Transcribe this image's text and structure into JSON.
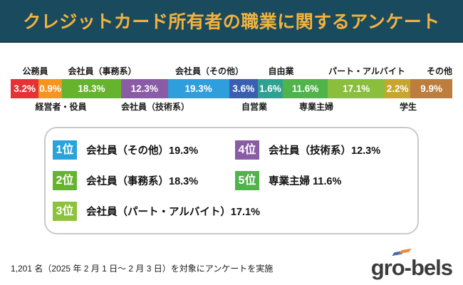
{
  "header": {
    "title": "クレジットカード所有者の職業に関するアンケート",
    "background_color": "#1a4a5e",
    "title_color": "#f2b33f"
  },
  "chart_data": {
    "type": "bar",
    "subtype": "stacked-horizontal-100pct",
    "title": "クレジットカード所有者の職業に関するアンケート",
    "unit": "%",
    "legend_position": "labels-alternating-above-below",
    "segments": [
      {
        "label": "公務員",
        "value": 3.2,
        "display": "3.2%",
        "color": "#e63232",
        "label_pos": "top"
      },
      {
        "label": "経営者・役員",
        "value": 0.9,
        "display": "0.9%",
        "color": "#f7941e",
        "label_pos": "bottom"
      },
      {
        "label": "会社員（事務系）",
        "value": 18.3,
        "display": "18.3%",
        "color": "#66b42e",
        "label_pos": "top"
      },
      {
        "label": "会社員（技術系）",
        "value": 12.3,
        "display": "12.3%",
        "color": "#8a5ca6",
        "label_pos": "bottom"
      },
      {
        "label": "会社員（その他）",
        "value": 19.3,
        "display": "19.3%",
        "color": "#2e9fdc",
        "label_pos": "top"
      },
      {
        "label": "自営業",
        "value": 3.6,
        "display": "3.6%",
        "color": "#3a5fb2",
        "label_pos": "bottom"
      },
      {
        "label": "自由業",
        "value": 1.6,
        "display": "1.6%",
        "color": "#2ea291",
        "label_pos": "top"
      },
      {
        "label": "専業主婦",
        "value": 11.6,
        "display": "11.6%",
        "color": "#50b44a",
        "label_pos": "bottom"
      },
      {
        "label": "パート・アルバイト",
        "value": 17.1,
        "display": "17.1%",
        "color": "#8abe3c",
        "label_pos": "top"
      },
      {
        "label": "学生",
        "value": 2.2,
        "display": "2.2%",
        "color": "#c7a52f",
        "label_pos": "bottom"
      },
      {
        "label": "その他",
        "value": 9.9,
        "display": "9.9%",
        "color": "#bd7d3c",
        "label_pos": "top"
      }
    ]
  },
  "ranking": {
    "items": [
      {
        "rank_label": "1位",
        "badge_color": "#29a3dc",
        "text": "会社員（その他）19.3%"
      },
      {
        "rank_label": "2位",
        "badge_color": "#66b42e",
        "text": "会社員（事務系）18.3%"
      },
      {
        "rank_label": "3位",
        "badge_color": "#8cc23c",
        "text": "会社員（パート・アルバイト）17.1%"
      },
      {
        "rank_label": "4位",
        "badge_color": "#8a5ca6",
        "text": "会社員（技術系）12.3%"
      },
      {
        "rank_label": "5位",
        "badge_color": "#50b44a",
        "text": "専業主婦 11.6%"
      }
    ]
  },
  "footer": {
    "note": "1,201 名（2025 年 2 月 1 日～ 2 月 3 日）を対象にアンケートを実施",
    "logo_text": "gro-bels"
  }
}
